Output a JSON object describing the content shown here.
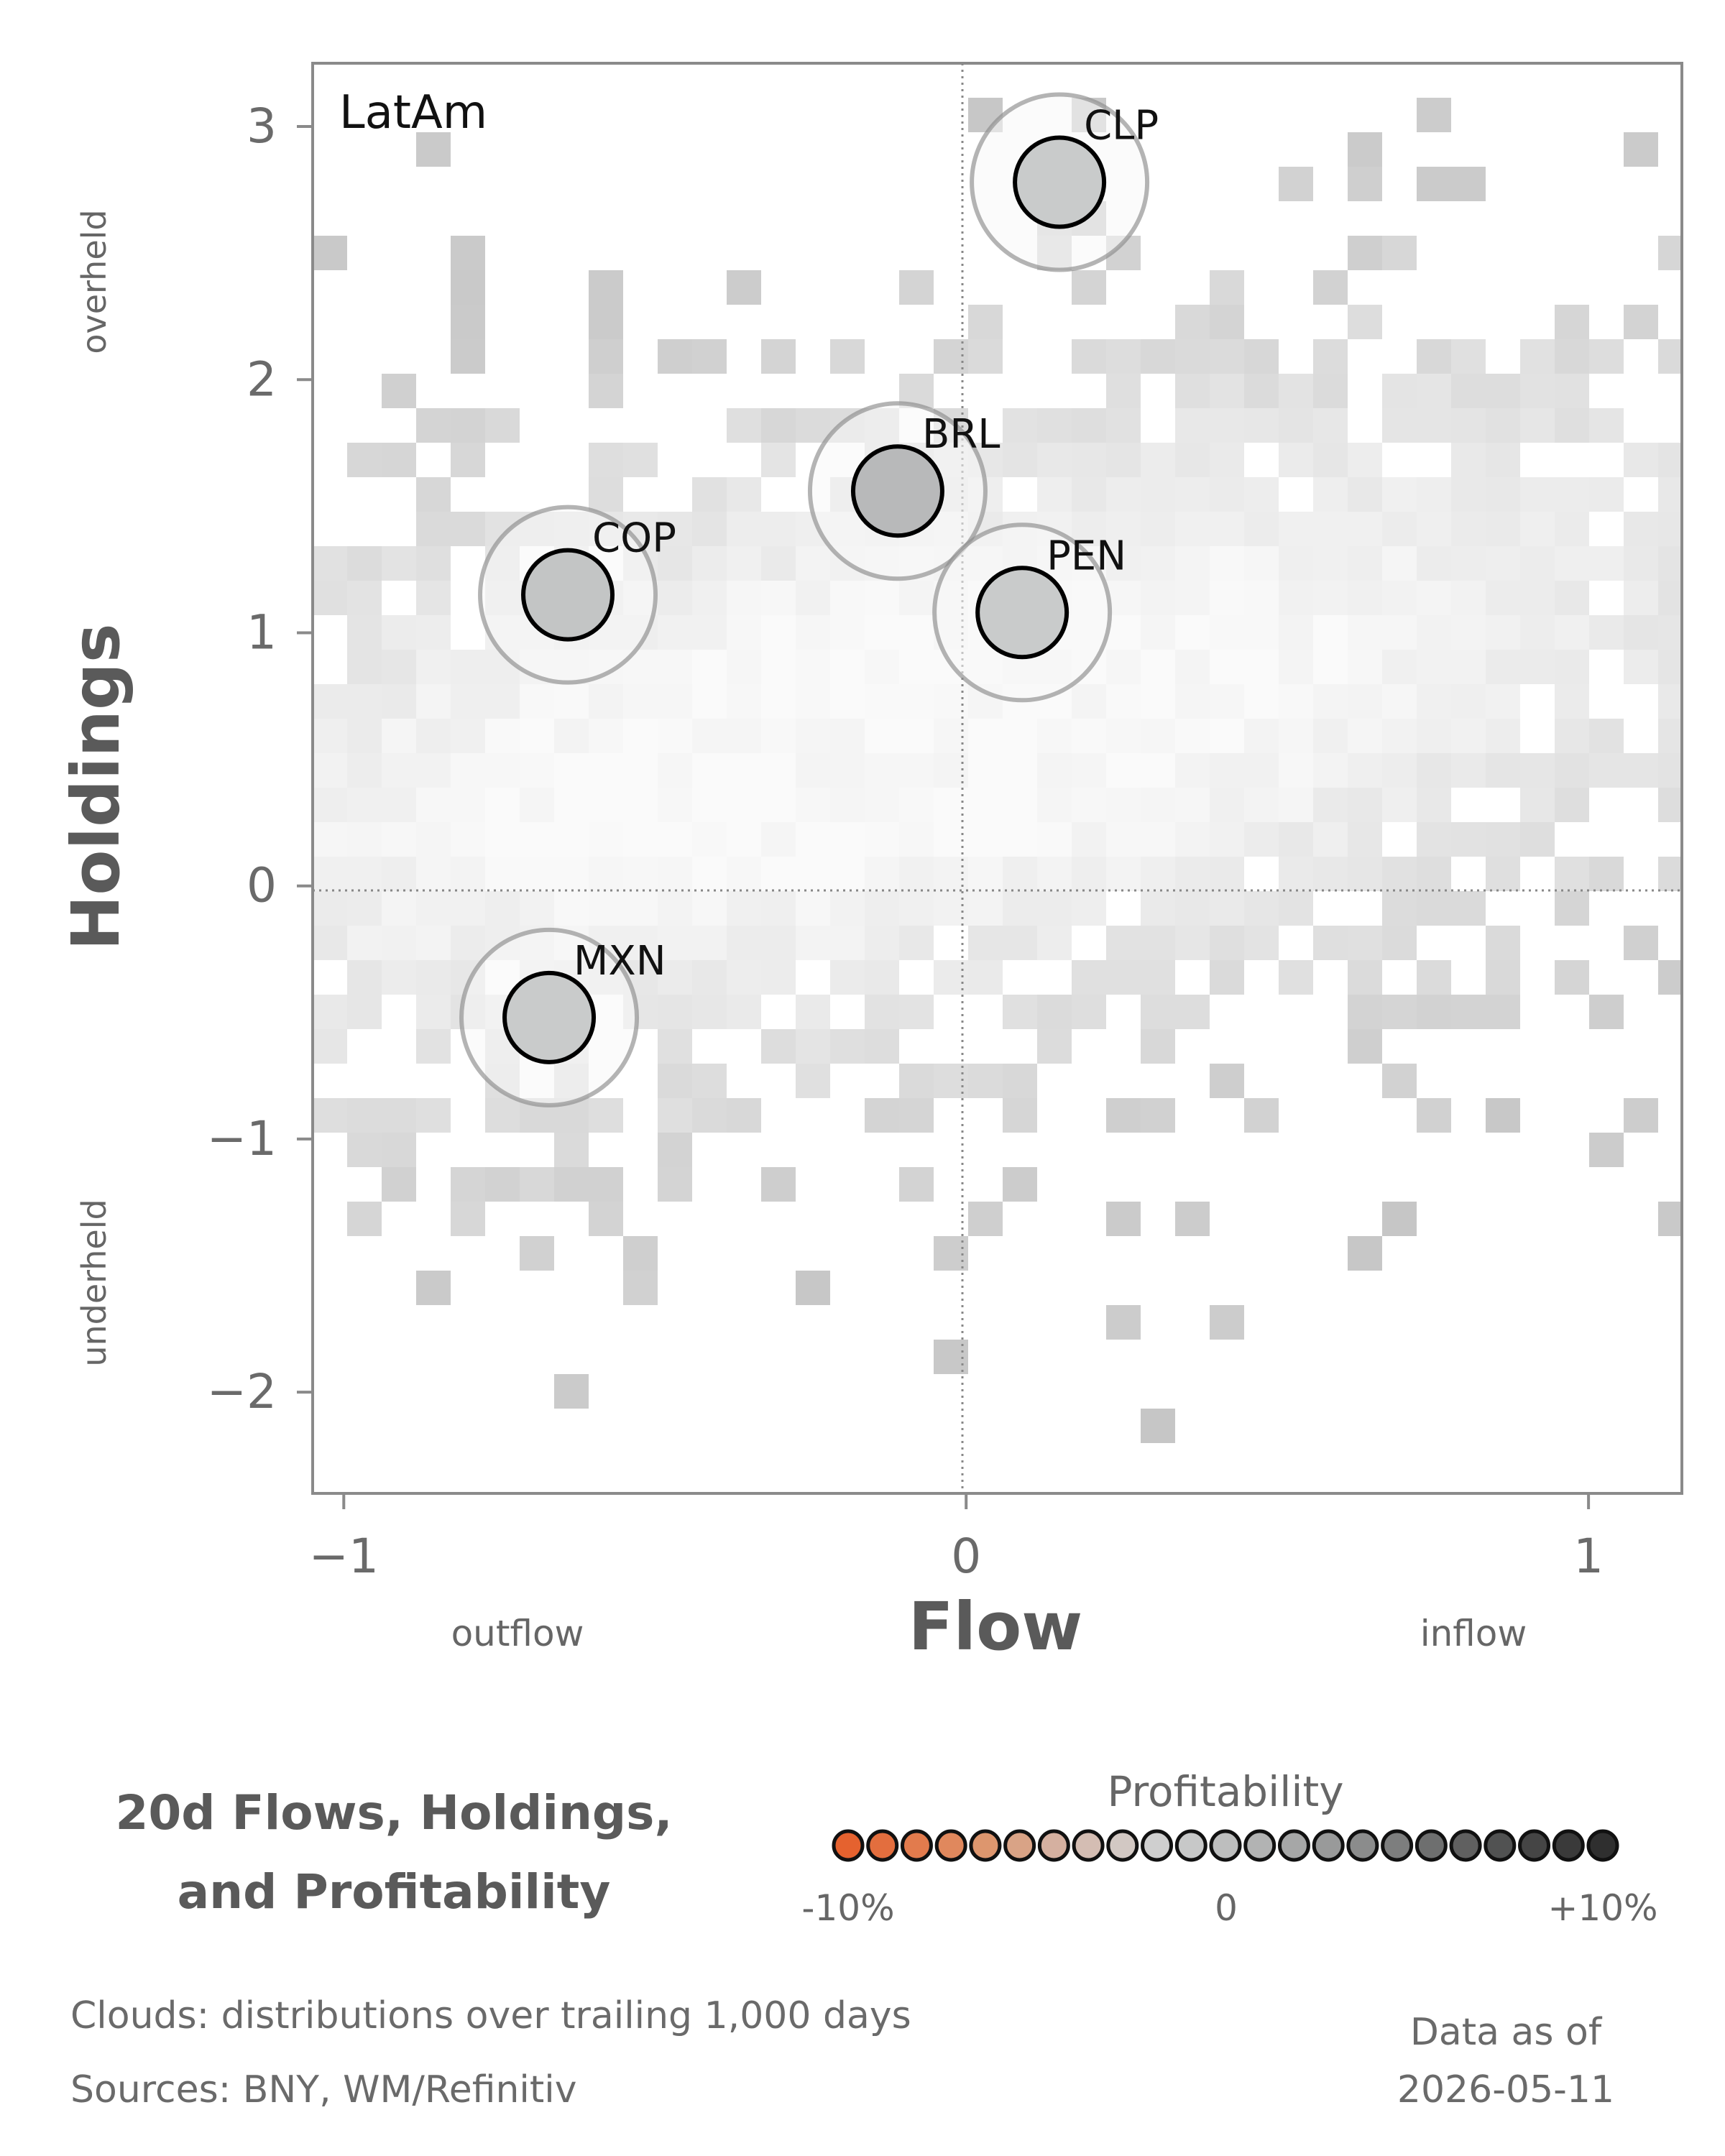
{
  "chart_data": {
    "type": "scatter",
    "panel_label": "LatAm",
    "xlabel": "Flow",
    "ylabel": "Holdings",
    "x_hint_left": "outflow",
    "x_hint_right": "inflow",
    "y_hint_top": "overheld",
    "y_hint_bottom": "underheld",
    "xlim": [
      -1.05,
      1.15
    ],
    "ylim": [
      -2.4,
      3.25
    ],
    "x_ticks": [
      -1,
      0,
      1
    ],
    "x_tick_labels": [
      "−1",
      "0",
      "1"
    ],
    "y_ticks": [
      -2,
      -1,
      0,
      1,
      2,
      3
    ],
    "y_tick_labels": [
      "−2",
      "−1",
      "0",
      "1",
      "2",
      "3"
    ],
    "points": [
      {
        "label": "CLP",
        "x": 0.15,
        "y": 2.78,
        "color": "#c9cbcb"
      },
      {
        "label": "BRL",
        "x": -0.11,
        "y": 1.56,
        "color": "#b8b9ba"
      },
      {
        "label": "COP",
        "x": -0.64,
        "y": 1.15,
        "color": "#c3c5c5"
      },
      {
        "label": "PEN",
        "x": 0.09,
        "y": 1.08,
        "color": "#c9cbcb"
      },
      {
        "label": "MXN",
        "x": -0.67,
        "y": -0.52,
        "color": "#c9cbcb"
      }
    ],
    "reference_lines": {
      "x": 0,
      "y": 0
    },
    "cloud_center": {
      "x": -0.1,
      "y": 0.6
    }
  },
  "title": [
    "20d Flows, Holdings,",
    "and Profitability"
  ],
  "legend": {
    "title": "Profitability",
    "left_label": "-10%",
    "mid_label": "0",
    "right_label": "+10%",
    "colors": [
      "#e5622f",
      "#e36e3e",
      "#e27b4d",
      "#e0885d",
      "#dd966e",
      "#d9a386",
      "#d5b0a0",
      "#d4bdb3",
      "#d2c8c3",
      "#cfcfcf",
      "#c7c8c8",
      "#bdbebe",
      "#b2b3b3",
      "#a6a7a7",
      "#999a9a",
      "#8b8c8c",
      "#7d7e7e",
      "#6e6f6f",
      "#606060",
      "#515252",
      "#454545",
      "#3a3a3a",
      "#2f2f2f"
    ]
  },
  "footer": {
    "clouds_note": "Clouds:  distributions over trailing 1,000 days",
    "sources": "Sources:  BNY, WM/Refinitiv",
    "data_as_of_label": "Data as of",
    "data_as_of_date": "2026-05-11"
  }
}
